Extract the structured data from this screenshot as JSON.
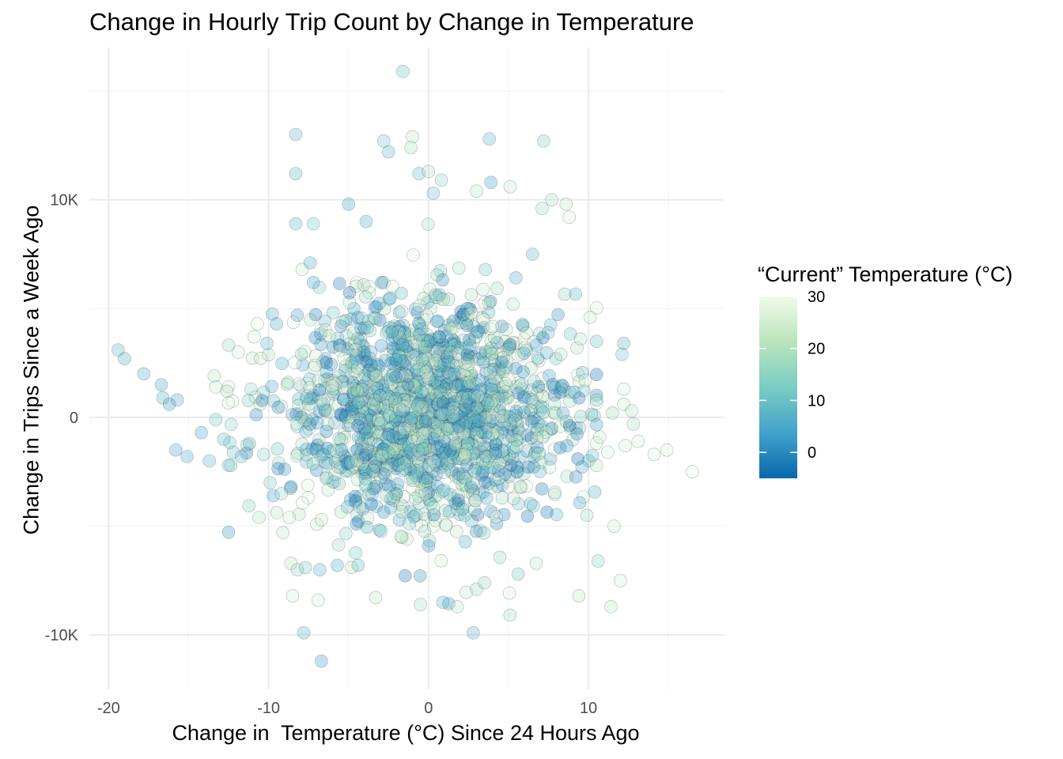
{
  "chart_data": {
    "type": "scatter",
    "title": "Change in Hourly Trip Count by Change in Temperature",
    "xlabel": "Change in  Temperature (°C) Since 24 Hours Ago",
    "ylabel": "Change in Trips Since a Week Ago",
    "xlim": [
      -21.2,
      18.5
    ],
    "ylim": [
      -12500,
      17000
    ],
    "x_ticks": [
      {
        "value": -20,
        "label": "-20"
      },
      {
        "value": -10,
        "label": "-10"
      },
      {
        "value": 0,
        "label": "0"
      },
      {
        "value": 10,
        "label": "10"
      }
    ],
    "y_ticks": [
      {
        "value": -10000,
        "label": "-10K"
      },
      {
        "value": 0,
        "label": "0"
      },
      {
        "value": 10000,
        "label": "10K"
      }
    ],
    "grid": true,
    "legend": {
      "title": "“Current” Temperature (°C)",
      "placement": "right",
      "range": [
        -5,
        30
      ],
      "ticks": [
        {
          "value": 0,
          "label": "0"
        },
        {
          "value": 10,
          "label": "10"
        },
        {
          "value": 20,
          "label": "20"
        },
        {
          "value": 30,
          "label": "30"
        }
      ],
      "colors": [
        "#0868ac",
        "#43a2ca",
        "#7bccc4",
        "#bae4bc",
        "#f0f9e8"
      ]
    },
    "point_color_low": "#0868ac",
    "point_color_high": "#f0f9e8",
    "points": [
      {
        "x": -19.4,
        "y": 3100,
        "c": 8
      },
      {
        "x": -19.0,
        "y": 2700,
        "c": 6
      },
      {
        "x": -17.8,
        "y": 2000,
        "c": 5
      },
      {
        "x": -16.7,
        "y": 1500,
        "c": 4
      },
      {
        "x": -16.6,
        "y": 900,
        "c": 6
      },
      {
        "x": -16.2,
        "y": 600,
        "c": 3
      },
      {
        "x": -15.7,
        "y": 800,
        "c": 5
      },
      {
        "x": -15.8,
        "y": -1500,
        "c": 4
      },
      {
        "x": -15.1,
        "y": -1800,
        "c": 5
      },
      {
        "x": -14.2,
        "y": -700,
        "c": 4
      },
      {
        "x": -13.7,
        "y": -2000,
        "c": 7
      },
      {
        "x": -13.4,
        "y": 1900,
        "c": 22
      },
      {
        "x": -13.3,
        "y": 1400,
        "c": 25
      },
      {
        "x": -13.3,
        "y": -100,
        "c": 12
      },
      {
        "x": -12.8,
        "y": -1000,
        "c": 9
      },
      {
        "x": -12.6,
        "y": 1200,
        "c": 20
      },
      {
        "x": -12.2,
        "y": -1600,
        "c": 10
      },
      {
        "x": -11.9,
        "y": 3000,
        "c": 26
      },
      {
        "x": -11.7,
        "y": -1800,
        "c": 8
      },
      {
        "x": -11.2,
        "y": -1200,
        "c": 6
      },
      {
        "x": -11.1,
        "y": 1300,
        "c": 15
      },
      {
        "x": -10.9,
        "y": 3700,
        "c": 26
      },
      {
        "x": -10.7,
        "y": 4300,
        "c": 28
      },
      {
        "x": -10.6,
        "y": -4600,
        "c": 20
      },
      {
        "x": -10.3,
        "y": -1700,
        "c": 14
      },
      {
        "x": -10.1,
        "y": 3400,
        "c": 9
      },
      {
        "x": -9.9,
        "y": -3000,
        "c": 12
      },
      {
        "x": -9.7,
        "y": -3600,
        "c": 4
      },
      {
        "x": -9.5,
        "y": 4300,
        "c": 5
      },
      {
        "x": -9.2,
        "y": -3500,
        "c": 16
      },
      {
        "x": -9.1,
        "y": -5300,
        "c": 22
      },
      {
        "x": -8.7,
        "y": -4600,
        "c": 24
      },
      {
        "x": -8.6,
        "y": -6700,
        "c": 22
      },
      {
        "x": -8.5,
        "y": -8200,
        "c": 25
      },
      {
        "x": -8.3,
        "y": 13000,
        "c": 8
      },
      {
        "x": -8.3,
        "y": 11200,
        "c": 8
      },
      {
        "x": -8.3,
        "y": 8900,
        "c": 7
      },
      {
        "x": -8.2,
        "y": 4700,
        "c": 3
      },
      {
        "x": -8.2,
        "y": -7000,
        "c": 16
      },
      {
        "x": -7.9,
        "y": 6800,
        "c": 24
      },
      {
        "x": -7.8,
        "y": -9900,
        "c": 8
      },
      {
        "x": -7.7,
        "y": -6900,
        "c": 12
      },
      {
        "x": -7.4,
        "y": 7100,
        "c": 6
      },
      {
        "x": -7.2,
        "y": 6200,
        "c": 4
      },
      {
        "x": -7.2,
        "y": 8900,
        "c": 11
      },
      {
        "x": -6.9,
        "y": -8400,
        "c": 26
      },
      {
        "x": -6.7,
        "y": -4700,
        "c": 24
      },
      {
        "x": -6.7,
        "y": -11200,
        "c": 3
      },
      {
        "x": -6.8,
        "y": -7000,
        "c": 7
      },
      {
        "x": -5.7,
        "y": -6800,
        "c": 6
      },
      {
        "x": -5.0,
        "y": 9800,
        "c": 4
      },
      {
        "x": -4.4,
        "y": -6800,
        "c": 9
      },
      {
        "x": -3.9,
        "y": 9000,
        "c": 5
      },
      {
        "x": -2.8,
        "y": 12700,
        "c": 11
      },
      {
        "x": -2.5,
        "y": 12200,
        "c": 7
      },
      {
        "x": -1.6,
        "y": 15900,
        "c": 10
      },
      {
        "x": -1.0,
        "y": 12900,
        "c": 22
      },
      {
        "x": -1.1,
        "y": 12400,
        "c": 20
      },
      {
        "x": -0.6,
        "y": 11200,
        "c": 9
      },
      {
        "x": 0.0,
        "y": 11300,
        "c": 19
      },
      {
        "x": 0.3,
        "y": 10300,
        "c": 10
      },
      {
        "x": 0.8,
        "y": 10900,
        "c": 15
      },
      {
        "x": 3.8,
        "y": 12800,
        "c": 7
      },
      {
        "x": 3.9,
        "y": 10800,
        "c": 3
      },
      {
        "x": 3.0,
        "y": 10400,
        "c": 22
      },
      {
        "x": 5.1,
        "y": 10600,
        "c": 24
      },
      {
        "x": 7.2,
        "y": 12700,
        "c": 13
      },
      {
        "x": 7.7,
        "y": 10000,
        "c": 20
      },
      {
        "x": 8.6,
        "y": 9800,
        "c": 23
      },
      {
        "x": 8.8,
        "y": 9200,
        "c": 27
      },
      {
        "x": 6.5,
        "y": 7500,
        "c": 8
      },
      {
        "x": 7.1,
        "y": 9600,
        "c": 18
      },
      {
        "x": 2.8,
        "y": -9900,
        "c": 7
      },
      {
        "x": 0.9,
        "y": -8500,
        "c": 7
      },
      {
        "x": -0.5,
        "y": -8600,
        "c": 18
      },
      {
        "x": 1.8,
        "y": -8700,
        "c": 22
      },
      {
        "x": 3.0,
        "y": -7900,
        "c": 18
      },
      {
        "x": 3.5,
        "y": -7600,
        "c": 16
      },
      {
        "x": 5.6,
        "y": -7200,
        "c": 12
      },
      {
        "x": 9.4,
        "y": -8200,
        "c": 21
      },
      {
        "x": 10.6,
        "y": -6600,
        "c": 14
      },
      {
        "x": 9.9,
        "y": -4500,
        "c": 17
      },
      {
        "x": 11.4,
        "y": -8700,
        "c": 22
      },
      {
        "x": 12.0,
        "y": -7500,
        "c": 25
      },
      {
        "x": 11.6,
        "y": -5000,
        "c": 24
      },
      {
        "x": 12.2,
        "y": 3400,
        "c": 8
      },
      {
        "x": 12.1,
        "y": 2900,
        "c": 10
      },
      {
        "x": 12.2,
        "y": 1300,
        "c": 27
      },
      {
        "x": 12.2,
        "y": 600,
        "c": 24
      },
      {
        "x": 12.7,
        "y": 300,
        "c": 22
      },
      {
        "x": 12.8,
        "y": -300,
        "c": 20
      },
      {
        "x": 13.1,
        "y": -1100,
        "c": 26
      },
      {
        "x": 14.1,
        "y": -1700,
        "c": 27
      },
      {
        "x": 14.9,
        "y": -1500,
        "c": 28
      },
      {
        "x": 16.5,
        "y": -2500,
        "c": 29
      },
      {
        "x": 10.1,
        "y": 4600,
        "c": 24
      },
      {
        "x": 9.5,
        "y": 3600,
        "c": 22
      },
      {
        "x": 9.8,
        "y": 1700,
        "c": 27
      },
      {
        "x": 10.7,
        "y": -900,
        "c": 24
      },
      {
        "x": 11.2,
        "y": -1600,
        "c": 26
      },
      {
        "x": 11.5,
        "y": 200,
        "c": 18
      },
      {
        "x": 12.3,
        "y": -1300,
        "c": 25
      }
    ],
    "cluster": {
      "seed": 20240613,
      "count": 1700,
      "center_x": 0.0,
      "center_y": 300,
      "sd_x": 4.2,
      "sd_y": 2600
    }
  }
}
